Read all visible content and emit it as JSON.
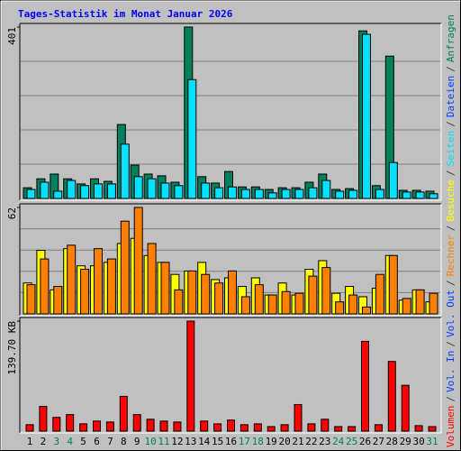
{
  "title": "Tages-Statistik im Monat Januar 2026",
  "legend": [
    {
      "text": "Volumen",
      "color": "#ff0000"
    },
    {
      "text": "Vol. In",
      "color": "#0040ff"
    },
    {
      "text": "Vol. Out",
      "color": "#0040ff"
    },
    {
      "text": "Rechner",
      "color": "#ff8000"
    },
    {
      "text": "Besuche",
      "color": "#ffff00"
    },
    {
      "text": "Seiten",
      "color": "#00e0ff"
    },
    {
      "text": "Dateien",
      "color": "#0040ff"
    },
    {
      "text": "Anfragen",
      "color": "#00805c"
    }
  ],
  "legend_separator": "/",
  "chart_data": [
    {
      "type": "bar",
      "ylim": [
        0,
        401
      ],
      "yticks": [
        401
      ],
      "grid": true,
      "series": [
        {
          "name": "Anfragen",
          "color": "#00805c",
          "values": [
            25,
            46,
            57,
            46,
            34,
            46,
            40,
            173,
            78,
            57,
            53,
            38,
            401,
            51,
            36,
            63,
            27,
            27,
            21,
            25,
            25,
            38,
            57,
            21,
            23,
            392,
            30,
            333,
            19,
            19,
            17
          ]
        },
        {
          "name": "Dateien",
          "color": "#00e0ff",
          "values": [
            21,
            38,
            17,
            42,
            30,
            34,
            34,
            127,
            51,
            46,
            36,
            30,
            278,
            36,
            25,
            27,
            21,
            21,
            13,
            21,
            21,
            25,
            42,
            17,
            19,
            384,
            21,
            84,
            15,
            15,
            11
          ]
        }
      ]
    },
    {
      "type": "bar",
      "ylim": [
        0,
        62
      ],
      "yticks": [
        62
      ],
      "grid": true,
      "series": [
        {
          "name": "Besuche",
          "color": "#ffff00",
          "values": [
            18,
            37,
            14,
            38,
            28,
            28,
            30,
            41,
            44,
            34,
            30,
            23,
            25,
            30,
            20,
            21,
            16,
            21,
            11,
            18,
            11,
            26,
            31,
            12,
            16,
            10,
            15,
            34,
            8,
            14,
            7
          ]
        },
        {
          "name": "Rechner",
          "color": "#ff8000",
          "values": [
            17,
            32,
            16,
            40,
            26,
            38,
            32,
            54,
            62,
            41,
            30,
            14,
            25,
            23,
            18,
            25,
            10,
            17,
            11,
            13,
            12,
            22,
            27,
            7,
            11,
            4,
            23,
            34,
            9,
            14,
            12
          ]
        }
      ]
    },
    {
      "type": "bar",
      "ylim": [
        0,
        139.7
      ],
      "yticks": [
        {
          "value": 139.7,
          "label": "139.70 KB"
        }
      ],
      "grid": false,
      "categories": [
        "1",
        "2",
        "3",
        "4",
        "5",
        "6",
        "7",
        "8",
        "9",
        "10",
        "11",
        "12",
        "13",
        "14",
        "15",
        "16",
        "17",
        "18",
        "19",
        "20",
        "21",
        "22",
        "23",
        "24",
        "25",
        "26",
        "27",
        "28",
        "29",
        "30",
        "31"
      ],
      "category_colors": [
        "#000000",
        "#000000",
        "#00805c",
        "#00805c",
        "#000000",
        "#000000",
        "#000000",
        "#000000",
        "#000000",
        "#00805c",
        "#00805c",
        "#000000",
        "#000000",
        "#000000",
        "#000000",
        "#000000",
        "#00805c",
        "#00805c",
        "#000000",
        "#000000",
        "#000000",
        "#000000",
        "#000000",
        "#00805c",
        "#00805c",
        "#000000",
        "#000000",
        "#000000",
        "#000000",
        "#000000",
        "#00805c"
      ],
      "series": [
        {
          "name": "Volumen",
          "color": "#ff0000",
          "values": [
            8.2,
            31.4,
            17.5,
            21,
            9.3,
            12.8,
            11.6,
            44.2,
            21,
            15.1,
            12.8,
            11.6,
            139.7,
            12.8,
            9.3,
            14,
            8.2,
            9.3,
            5.8,
            8.2,
            33.8,
            9.3,
            15.1,
            5.8,
            5.8,
            114,
            8.2,
            88.5,
            58.2,
            7,
            5.8
          ]
        }
      ]
    }
  ]
}
